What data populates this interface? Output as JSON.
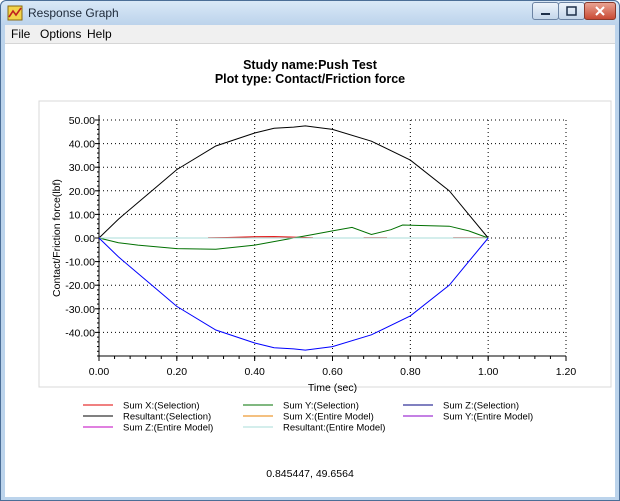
{
  "window": {
    "title": "Response Graph"
  },
  "menu": {
    "items": [
      "File",
      "Options",
      "Help"
    ]
  },
  "chart_data": {
    "type": "line",
    "title": "Study name:Push Test",
    "subtitle": "Plot type: Contact/Friction force",
    "xlabel": "Time (sec)",
    "ylabel": "Contact/Friction force(lbf)",
    "xlim": [
      0,
      1.2
    ],
    "ylim": [
      -50,
      50
    ],
    "x_ticks": [
      "0.00",
      "0.20",
      "0.40",
      "0.60",
      "0.80",
      "1.00",
      "1.20"
    ],
    "y_ticks": [
      "50.00",
      "40.00",
      "30.00",
      "20.00",
      "10.00",
      "0.00",
      "-10.00",
      "-20.00",
      "-30.00",
      "-40.00"
    ],
    "grid": true,
    "legend_position": "bottom",
    "series": [
      {
        "name": "Sum X:(Selection)",
        "color": "#e00000",
        "x": [
          0.28,
          0.33,
          0.4,
          0.45,
          0.5,
          0.55
        ],
        "y": [
          0.1,
          0.2,
          0.5,
          0.6,
          0.4,
          0.1
        ],
        "segments": [
          [
            0.28,
            0.55
          ],
          [
            0.68,
            0.74
          ],
          [
            0.91,
            0.99
          ]
        ]
      },
      {
        "name": "Sum Y:(Selection)",
        "color": "#007000",
        "x": [
          0,
          0.05,
          0.1,
          0.2,
          0.3,
          0.4,
          0.5,
          0.55,
          0.6,
          0.65,
          0.7,
          0.75,
          0.78,
          0.85,
          0.9,
          0.95,
          1.0
        ],
        "y": [
          0,
          -2,
          -3,
          -4.5,
          -4.8,
          -3,
          0,
          1.5,
          3,
          4.5,
          1.5,
          3.5,
          5.5,
          5.2,
          5,
          3,
          0
        ]
      },
      {
        "name": "Sum Z:(Selection)",
        "color": "#000080",
        "x": [],
        "y": []
      },
      {
        "name": "Resultant:(Selection)",
        "color": "#000000",
        "x": [
          0,
          0.05,
          0.1,
          0.15,
          0.2,
          0.3,
          0.4,
          0.45,
          0.5,
          0.53,
          0.6,
          0.7,
          0.8,
          0.9,
          0.95,
          1.0
        ],
        "y": [
          0,
          8,
          15,
          22,
          29,
          39,
          44.5,
          46.5,
          47,
          47.5,
          46,
          41,
          33,
          20,
          10,
          0
        ]
      },
      {
        "name": "Sum X:(Entire Model)",
        "color": "#e88000",
        "x": [],
        "y": []
      },
      {
        "name": "Sum Y:(Entire Model)",
        "color": "#8a00c8",
        "x": [],
        "y": []
      },
      {
        "name": "Sum Z:(Entire Model)",
        "color": "#c000c0",
        "x": [],
        "y": []
      },
      {
        "name": "Resultant:(Entire Model)",
        "color": "#a8dcd8",
        "x": [
          0,
          1.0
        ],
        "y": [
          0,
          0
        ]
      },
      {
        "name": "Blue (unlabeled in legend)",
        "color": "#0000ff",
        "x": [
          0,
          0.05,
          0.1,
          0.15,
          0.2,
          0.3,
          0.4,
          0.45,
          0.5,
          0.53,
          0.6,
          0.7,
          0.8,
          0.9,
          0.95,
          1.0
        ],
        "y": [
          0,
          -8,
          -15,
          -22,
          -29,
          -39,
          -44.5,
          -46.5,
          -47,
          -47.5,
          -46,
          -41,
          -33,
          -20,
          -10,
          0
        ]
      }
    ]
  },
  "readout": "0.845447, 49.6564"
}
